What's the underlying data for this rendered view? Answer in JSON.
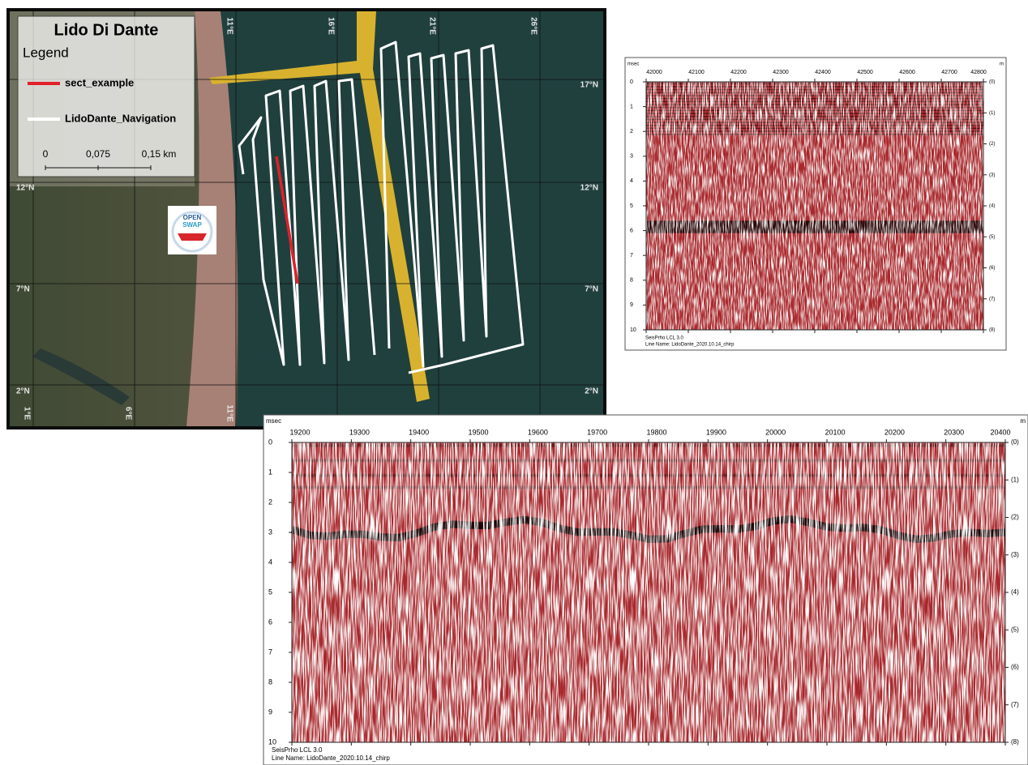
{
  "map": {
    "title": "Lido Di Dante",
    "legend_title": "Legend",
    "legend": [
      "sect_example",
      "LidoDante_Navigation"
    ],
    "scale": [
      "0",
      "0,075",
      "0,15 km"
    ],
    "top_labels": [
      "11°E",
      "16°E",
      "21°E",
      "26°E"
    ],
    "bottom_labels": [
      "1°E",
      "6°E",
      "11°E"
    ],
    "right_labels": [
      "17°N",
      "12°N",
      "7°N",
      "2°N"
    ],
    "left_labels": [
      "12°N",
      "7°N",
      "2°N"
    ],
    "logo": [
      "OPEN",
      "SWAP"
    ]
  },
  "sections": [
    {
      "y_unit": "msec",
      "x_unit": "m",
      "xticks": [
        42000,
        42100,
        42200,
        42300,
        42400,
        42500,
        42600,
        42700,
        42800
      ],
      "yticks": [
        0,
        1,
        2,
        3,
        4,
        5,
        6,
        7,
        8,
        9,
        10
      ],
      "right_ticks": [
        "(0)",
        "(1)",
        "(2)",
        "(3)",
        "(4)",
        "(5)",
        "(6)",
        "(7)",
        "(8)"
      ],
      "footer": [
        "SeisPrho LCL 3.0",
        "Line Name: LidoDante_2020.10.14_chirp"
      ]
    },
    {
      "y_unit": "msec",
      "x_unit": "m",
      "xticks": [
        19200,
        19300,
        19400,
        19500,
        19600,
        19700,
        19800,
        19900,
        20000,
        20100,
        20200,
        20300,
        20400
      ],
      "yticks": [
        0,
        1,
        2,
        3,
        4,
        5,
        6,
        7,
        8,
        9,
        10
      ],
      "right_ticks": [
        "(0)",
        "(1)",
        "(2)",
        "(3)",
        "(4)",
        "(5)",
        "(6)",
        "(7)",
        "(8)"
      ],
      "footer": [
        "SeisPrho LCL 3.0",
        "Line Name: LidoDante_2020.10.14_chirp"
      ]
    }
  ]
}
